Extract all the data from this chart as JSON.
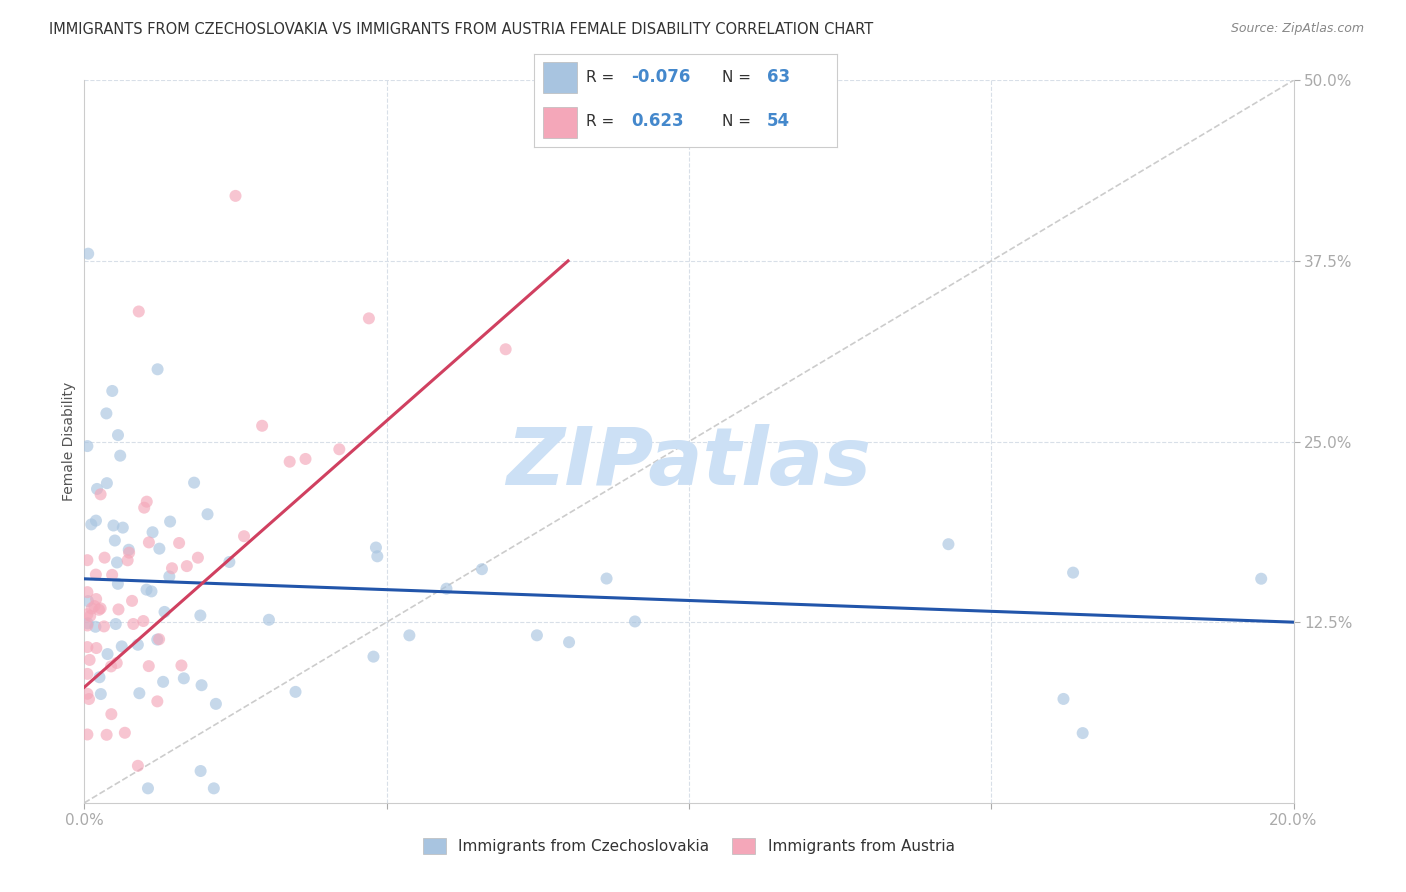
{
  "title": "IMMIGRANTS FROM CZECHOSLOVAKIA VS IMMIGRANTS FROM AUSTRIA FEMALE DISABILITY CORRELATION CHART",
  "source": "Source: ZipAtlas.com",
  "ylabel": "Female Disability",
  "xlim": [
    0.0,
    0.2
  ],
  "ylim": [
    0.0,
    0.5
  ],
  "xticks": [
    0.0,
    0.05,
    0.1,
    0.15,
    0.2
  ],
  "xticklabels": [
    "0.0%",
    "",
    "",
    "",
    "20.0%"
  ],
  "yticks_right": [
    0.125,
    0.25,
    0.375,
    0.5
  ],
  "ytick_labels_right": [
    "12.5%",
    "25.0%",
    "37.5%",
    "50.0%"
  ],
  "legend_labels": [
    "Immigrants from Czechoslovakia",
    "Immigrants from Austria"
  ],
  "legend_R_czech": "-0.076",
  "legend_N_czech": "63",
  "legend_R_austria": "0.623",
  "legend_N_austria": "54",
  "color_czech": "#a8c4e0",
  "color_austria": "#f4a7b9",
  "color_czech_line": "#2255aa",
  "color_austria_line": "#d04060",
  "watermark": "ZIPatlas",
  "watermark_color": "#cce0f5",
  "background_color": "#ffffff",
  "grid_color": "#d8dfe8",
  "scatter_alpha": 0.65,
  "scatter_size": 75,
  "czech_line_x0": 0.0,
  "czech_line_y0": 0.155,
  "czech_line_x1": 0.2,
  "czech_line_y1": 0.125,
  "austria_line_x0": 0.0,
  "austria_line_y0": 0.08,
  "austria_line_x1": 0.08,
  "austria_line_y1": 0.375
}
